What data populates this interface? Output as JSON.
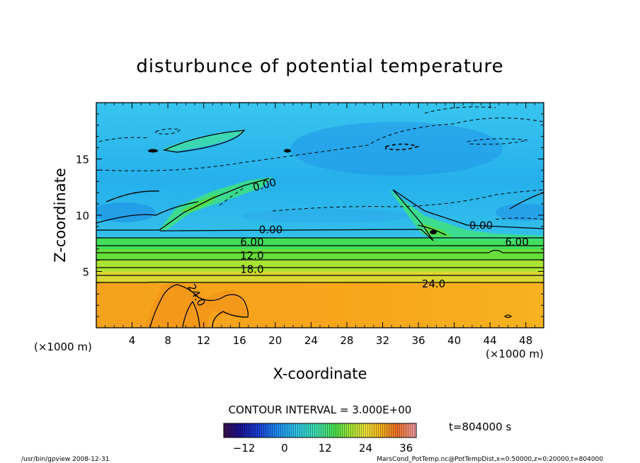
{
  "chart_data": {
    "type": "heatmap",
    "title": "disturbunce of potential temperature",
    "xlabel": "X-coordinate",
    "ylabel": "Z-coordinate",
    "x_unit": "(×1000 m)",
    "y_unit": "(×1000 m)",
    "xlim": [
      0,
      50
    ],
    "ylim": [
      0,
      20
    ],
    "x_ticks": [
      "4",
      "8",
      "12",
      "16",
      "20",
      "24",
      "28",
      "32",
      "36",
      "40",
      "44",
      "48"
    ],
    "y_ticks": [
      "5",
      "10",
      "15"
    ],
    "contour_interval_text": "CONTOUR INTERVAL = 3.000E+00",
    "contour_labels": [
      {
        "text": "0.00",
        "x": 18.8,
        "z": 12.7,
        "rotate": -14
      },
      {
        "text": "0.00",
        "x": 19.5,
        "z": 8.7,
        "rotate": 0
      },
      {
        "text": "6.00",
        "x": 17.4,
        "z": 7.6,
        "rotate": 0
      },
      {
        "text": "12.0",
        "x": 17.4,
        "z": 6.4,
        "rotate": 0
      },
      {
        "text": "18.0",
        "x": 17.4,
        "z": 5.2,
        "rotate": 0
      },
      {
        "text": "24.0",
        "x": 37.7,
        "z": 3.9,
        "rotate": 0
      },
      {
        "text": "24.0",
        "x": 11.2,
        "z": 2.9,
        "rotate": 60
      },
      {
        "text": "0.00",
        "x": 43.0,
        "z": 9.1,
        "rotate": 0
      },
      {
        "text": "6.00",
        "x": 47.0,
        "z": 7.6,
        "rotate": 0
      }
    ],
    "value_bands": [
      {
        "z_from": 0,
        "z_to": 4,
        "value": 28
      },
      {
        "z_from": 4,
        "z_to": 5,
        "value": 22
      },
      {
        "z_from": 5,
        "z_to": 6,
        "value": 18
      },
      {
        "z_from": 6,
        "z_to": 7,
        "value": 14
      },
      {
        "z_from": 7,
        "z_to": 8,
        "value": 9
      },
      {
        "z_from": 8,
        "z_to": 9,
        "value": 4
      },
      {
        "z_from": 9,
        "z_to": 20,
        "value": -3
      }
    ],
    "colorbar": {
      "min": -18,
      "max": 39,
      "ticks": [
        "−12",
        "0",
        "12",
        "24",
        "36"
      ]
    }
  },
  "time_text": "t=804000 s",
  "footer": {
    "left": "/usr/bin/gpview   2008-12-31",
    "right": "MarsCond_PotTemp.nc@PotTempDist,x=0:50000,z=0:20000,t=804000"
  }
}
